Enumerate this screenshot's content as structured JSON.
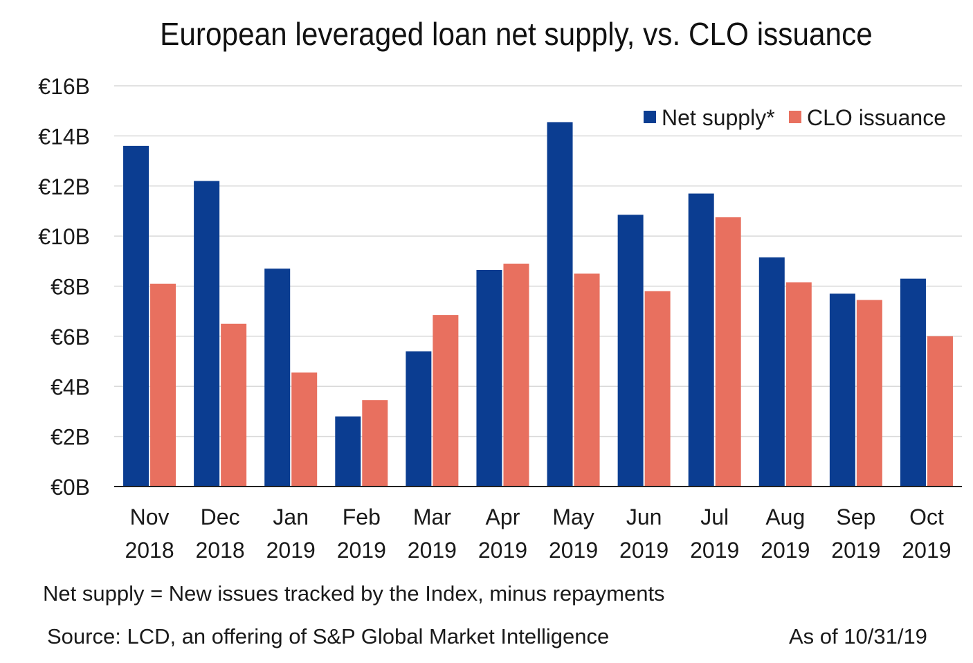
{
  "chart_data": {
    "type": "bar",
    "title": "European leveraged loan net supply, vs. CLO issuance",
    "categories": [
      [
        "Nov",
        "2018"
      ],
      [
        "Dec",
        "2018"
      ],
      [
        "Jan",
        "2019"
      ],
      [
        "Feb",
        "2019"
      ],
      [
        "Mar",
        "2019"
      ],
      [
        "Apr",
        "2019"
      ],
      [
        "May",
        "2019"
      ],
      [
        "Jun",
        "2019"
      ],
      [
        "Jul",
        "2019"
      ],
      [
        "Aug",
        "2019"
      ],
      [
        "Sep",
        "2019"
      ],
      [
        "Oct",
        "2019"
      ]
    ],
    "series": [
      {
        "name": "Net supply*",
        "color": "#0b3d91",
        "values": [
          13.6,
          12.2,
          8.7,
          2.8,
          5.4,
          8.65,
          14.55,
          10.85,
          11.7,
          9.15,
          7.7,
          8.3
        ]
      },
      {
        "name": "CLO issuance",
        "color": "#e8705f",
        "values": [
          8.1,
          6.5,
          4.55,
          3.45,
          6.85,
          8.9,
          8.5,
          7.8,
          10.75,
          8.15,
          7.45,
          6.0
        ]
      }
    ],
    "ylim": [
      0,
      16
    ],
    "yticks": [
      0,
      2,
      4,
      6,
      8,
      10,
      12,
      14,
      16
    ],
    "ytick_labels": [
      "€0B",
      "€2B",
      "€4B",
      "€6B",
      "€8B",
      "€10B",
      "€12B",
      "€14B",
      "€16B"
    ],
    "xlabel": "",
    "ylabel": "",
    "grid": true,
    "legend_position": "top-right"
  },
  "footnote": "Net supply = New issues tracked by the Index, minus repayments",
  "source": "Source: LCD, an offering of S&P Global Market Intelligence",
  "as_of": "As of 10/31/19"
}
